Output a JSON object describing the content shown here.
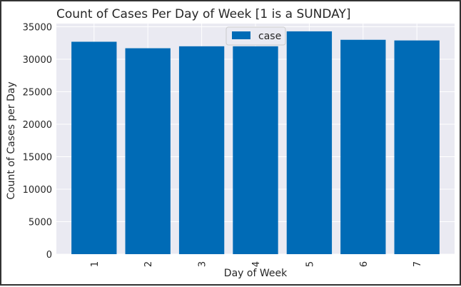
{
  "chart_data": {
    "type": "bar",
    "title": "Count of Cases Per Day of Week [1 is a SUNDAY]",
    "xlabel": "Day of Week",
    "ylabel": "Count of Cases per Day",
    "categories": [
      "1",
      "2",
      "3",
      "4",
      "5",
      "6",
      "7"
    ],
    "series": [
      {
        "name": "case",
        "values": [
          32700,
          31700,
          32000,
          32000,
          34300,
          33000,
          32900
        ]
      }
    ],
    "ylim": [
      0,
      35500
    ],
    "yticks": [
      0,
      5000,
      10000,
      15000,
      20000,
      25000,
      30000,
      35000
    ],
    "grid": true,
    "legend": "top-center",
    "colors": {
      "bar": "#006bb6",
      "plot_background": "#eaeaf2",
      "grid": "#ffffff",
      "text": "#262626"
    }
  }
}
